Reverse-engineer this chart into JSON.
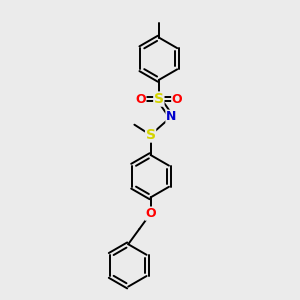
{
  "bg_color": "#ebebeb",
  "bond_color": "#000000",
  "bond_lw": 1.4,
  "S_color": "#d4d400",
  "N_color": "#0000cc",
  "O_color": "#ff0000",
  "ring_r": 0.72,
  "figsize": [
    3.0,
    3.0
  ],
  "dpi": 100,
  "xlim": [
    0,
    10
  ],
  "ylim": [
    0,
    10
  ],
  "S1_fontsize": 10,
  "N_fontsize": 9,
  "O_fontsize": 9,
  "atom_circle_r": 0.18
}
